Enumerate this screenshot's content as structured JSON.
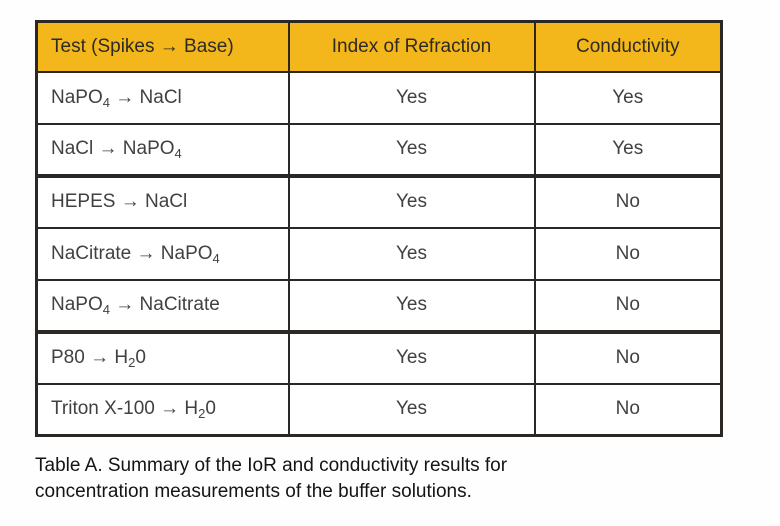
{
  "colors": {
    "header_background": "#F3B71B",
    "border": "#2B2725",
    "header_text": "#2E2A24",
    "body_text": "#414141"
  },
  "table": {
    "headers": {
      "test": "Test (Spikes → Base)",
      "index_of_refraction": "Index of Refraction",
      "conductivity": "Conductivity"
    },
    "rows": [
      {
        "test": [
          {
            "t": "NaPO"
          },
          {
            "t": "4",
            "sub": true
          },
          {
            "t": " → NaCl"
          }
        ],
        "index_of_refraction": "Yes",
        "conductivity": "Yes"
      },
      {
        "test": [
          {
            "t": "NaCl → NaPO"
          },
          {
            "t": "4",
            "sub": true
          }
        ],
        "index_of_refraction": "Yes",
        "conductivity": "Yes"
      },
      {
        "test": [
          {
            "t": "HEPES → NaCl"
          }
        ],
        "index_of_refraction": "Yes",
        "conductivity": "No",
        "section_start": true
      },
      {
        "test": [
          {
            "t": "NaCitrate → NaPO"
          },
          {
            "t": "4",
            "sub": true
          }
        ],
        "index_of_refraction": "Yes",
        "conductivity": "No"
      },
      {
        "test": [
          {
            "t": "NaPO"
          },
          {
            "t": "4",
            "sub": true
          },
          {
            "t": " → NaCitrate"
          }
        ],
        "index_of_refraction": "Yes",
        "conductivity": "No"
      },
      {
        "test": [
          {
            "t": "P80 → H"
          },
          {
            "t": "2",
            "sub": true
          },
          {
            "t": "0"
          }
        ],
        "index_of_refraction": "Yes",
        "conductivity": "No",
        "section_start": true
      },
      {
        "test": [
          {
            "t": "Triton X-100 → H"
          },
          {
            "t": "2",
            "sub": true
          },
          {
            "t": "0"
          }
        ],
        "index_of_refraction": "Yes",
        "conductivity": "No"
      }
    ]
  },
  "caption": {
    "line1": "Table A. Summary of the IoR and conductivity results for",
    "line2": "concentration measurements of the buffer solutions."
  }
}
